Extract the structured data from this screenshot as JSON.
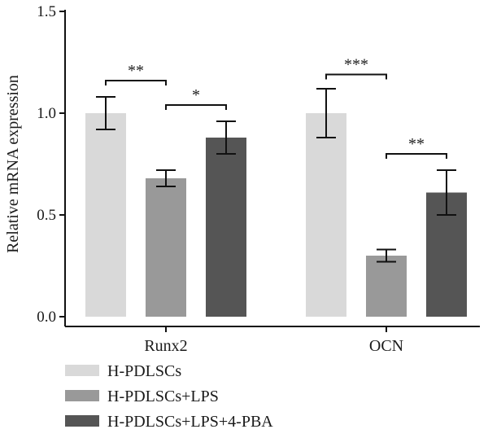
{
  "chart_data": {
    "type": "bar",
    "title": "",
    "xlabel": "",
    "ylabel": "Relative mRNA expression",
    "ylim": [
      0,
      1.5
    ],
    "yticks": [
      "0.0",
      "0.5",
      "1.0",
      "1.5"
    ],
    "ytick_values": [
      0,
      0.5,
      1.0,
      1.5
    ],
    "categories": [
      "Runx2",
      "OCN"
    ],
    "series": [
      {
        "name": "H-PDLSCs",
        "values": [
          1.0,
          1.0
        ],
        "errors": [
          0.08,
          0.12
        ],
        "color": "#d9d9d9"
      },
      {
        "name": "H-PDLSCs+LPS",
        "values": [
          0.68,
          0.3
        ],
        "errors": [
          0.04,
          0.03
        ],
        "color": "#999999"
      },
      {
        "name": "H-PDLSCs+LPS+4-PBA",
        "values": [
          0.88,
          0.61
        ],
        "errors": [
          0.08,
          0.11
        ],
        "color": "#555555"
      }
    ],
    "significance": [
      {
        "category": 0,
        "from": 0,
        "to": 1,
        "y": 1.16,
        "label": "**"
      },
      {
        "category": 0,
        "from": 1,
        "to": 2,
        "y": 1.04,
        "label": "*"
      },
      {
        "category": 1,
        "from": 0,
        "to": 1,
        "y": 1.19,
        "label": "***"
      },
      {
        "category": 1,
        "from": 1,
        "to": 2,
        "y": 0.8,
        "label": "**"
      }
    ],
    "legend_position": "bottom-left",
    "grid": false
  }
}
